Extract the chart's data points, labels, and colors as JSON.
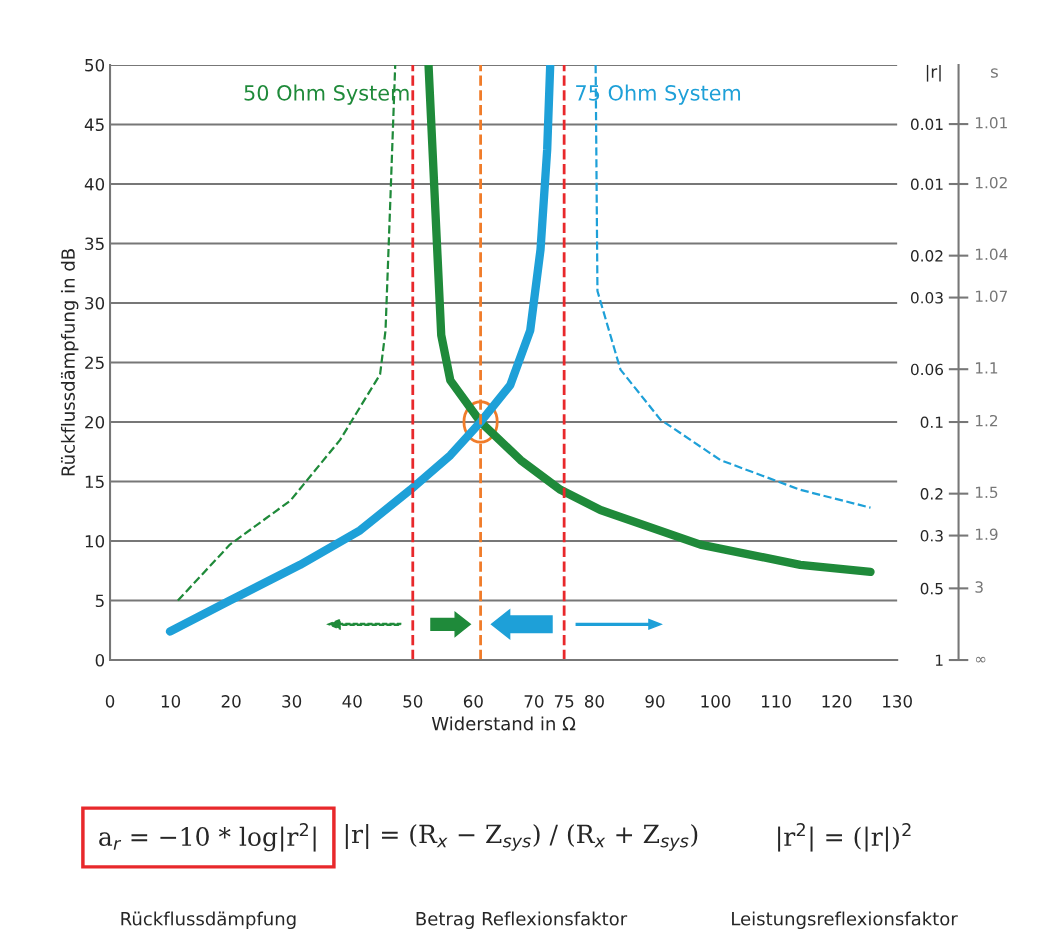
{
  "chart_data": {
    "type": "line",
    "xlabel": "Widerstand in Ω",
    "ylabel": "Rückflussdämpfung in dB",
    "y2label": "|r|",
    "xlim": [
      0,
      130
    ],
    "xticks": [
      0,
      10,
      20,
      30,
      40,
      50,
      60,
      70,
      75,
      80,
      90,
      100,
      110,
      120,
      130
    ],
    "ylim": [
      0,
      50
    ],
    "yticks": [
      0,
      5,
      10,
      15,
      20,
      25,
      30,
      35,
      40,
      45,
      50
    ],
    "log": "y2",
    "y2lim": [
      1,
      0.00316
    ],
    "y2ticks": [
      1,
      0.5,
      0.3,
      0.2,
      0.1,
      0.06,
      0.03,
      0.02,
      0.01,
      {
        "value": 0.0056,
        "label": "0.01"
      }
    ],
    "grid": "y",
    "legend": false,
    "series": [
      {
        "name": "50 Ohm System",
        "color": "#1f8a3a",
        "line_style": "solid",
        "x": [
          52.6,
          54.7,
          56.2,
          61.2,
          67.8,
          74.4,
          81,
          97.5,
          114,
          125.6
        ],
        "values": [
          50,
          27.3,
          23.5,
          20,
          16.8,
          14.3,
          12.6,
          9.7,
          8.0,
          7.4
        ]
      },
      {
        "color": "#1f8a3a",
        "line_style": "dashed",
        "x": [
          11.2,
          19.8,
          29.8,
          38,
          44.6,
          45.5,
          46.3,
          47.1
        ],
        "values": [
          5,
          9.7,
          13.4,
          18.5,
          24,
          27.7,
          38.7,
          50
        ]
      },
      {
        "name": "75 Ohm System",
        "color": "#1ea0d8",
        "line_style": "solid",
        "x": [
          9.9,
          19.8,
          31.4,
          41.3,
          49.6,
          56.2,
          61.2,
          66.1,
          69.4,
          71.1,
          72.2,
          72.7
        ],
        "values": [
          2.4,
          5,
          8,
          10.9,
          14.3,
          17.2,
          20,
          23.1,
          27.7,
          34.5,
          42.9,
          50
        ]
      },
      {
        "color": "#1ea0d8",
        "line_style": "dashed",
        "x": [
          80.2,
          80.5,
          84.3,
          90.9,
          100.8,
          114,
          125.6
        ],
        "values": [
          50,
          31,
          24.4,
          20.2,
          16.8,
          14.3,
          12.8
        ]
      }
    ],
    "ref_lines": [
      {
        "axis": "x",
        "value": 50,
        "color": "#e8282b",
        "line_style": "dashed"
      },
      {
        "axis": "x",
        "value": 75,
        "color": "#e8282b",
        "line_style": "dashed"
      },
      {
        "axis": "x",
        "value": 61.2,
        "color": "#f07c2a",
        "line_style": "dashed"
      }
    ],
    "annotations": [
      "a$_{r}$ = −10 * log|r$^{2}$|",
      "|r| = (R$_{x}$ − Z$_{sys}$) / (R$_{x}$ + Z$_{sys}$)",
      "|r$^{2}$| = (|r|)$^{2}$",
      "Rückflussdämpfung",
      "Betrag Reflexionsfaktor",
      "Leistungsreflexionsfaktor",
      "s",
      "∞",
      "3",
      "1.9",
      "1.5",
      "1.2",
      "1.1",
      "1.07",
      "1.04",
      "1.02",
      "1.01"
    ]
  }
}
